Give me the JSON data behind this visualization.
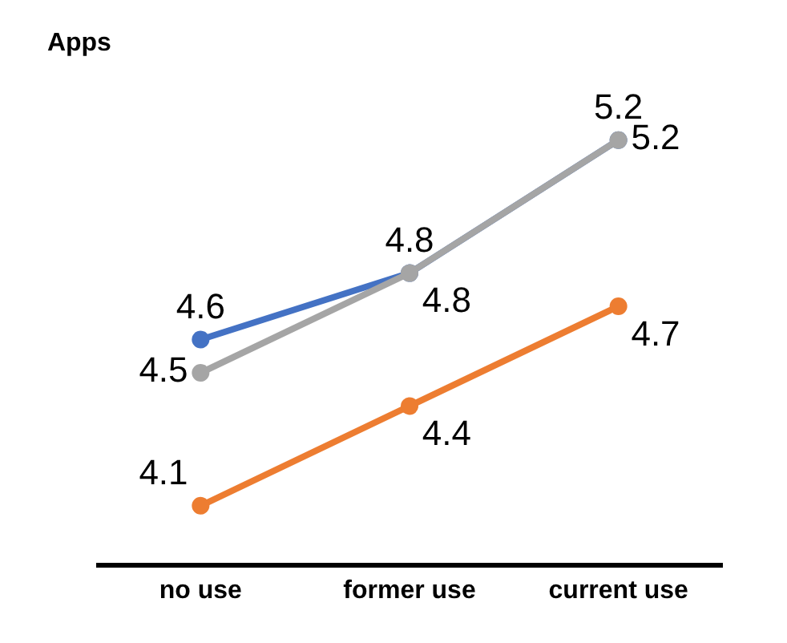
{
  "chart_data": {
    "type": "line",
    "title": "Apps",
    "categories": [
      "no use",
      "former use",
      "current use"
    ],
    "series": [
      {
        "color": "#4472c4",
        "values": [
          4.6,
          4.8,
          5.2
        ]
      },
      {
        "color": "#a5a5a5",
        "values": [
          4.5,
          4.8,
          5.2
        ]
      },
      {
        "color": "#ed7d31",
        "values": [
          4.1,
          4.4,
          4.7
        ]
      }
    ],
    "data_labels": true,
    "marker": "circle",
    "line_style": "solid"
  }
}
